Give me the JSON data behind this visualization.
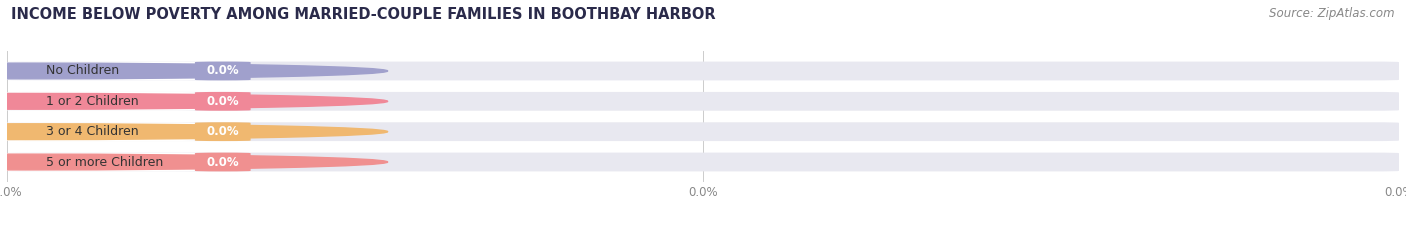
{
  "title": "INCOME BELOW POVERTY AMONG MARRIED-COUPLE FAMILIES IN BOOTHBAY HARBOR",
  "source": "Source: ZipAtlas.com",
  "categories": [
    "No Children",
    "1 or 2 Children",
    "3 or 4 Children",
    "5 or more Children"
  ],
  "values": [
    0.0,
    0.0,
    0.0,
    0.0
  ],
  "bar_colors": [
    "#a0a0cc",
    "#f08898",
    "#f0b870",
    "#f09090"
  ],
  "bg_color": "#ffffff",
  "bar_bg_color": "#e8e8f0",
  "title_fontsize": 10.5,
  "source_fontsize": 8.5,
  "tick_labels": [
    "0.0%",
    "0.0%",
    "0.0%"
  ],
  "tick_color": "#888888"
}
